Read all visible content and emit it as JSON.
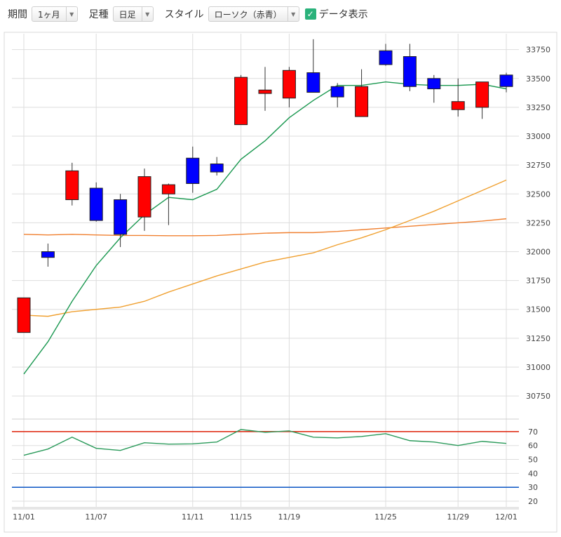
{
  "toolbar": {
    "period_label": "期間",
    "period_value": "1ヶ月",
    "candle_label": "足種",
    "candle_value": "日足",
    "style_label": "スタイル",
    "style_value": "ローソク（赤青）",
    "data_display_label": "データ表示",
    "data_display_checked": true
  },
  "colors": {
    "up": "#ff0000",
    "down": "#0000ff",
    "ma_short": "#1a9850",
    "ma_mid": "#f0a030",
    "ma_long": "#f08030",
    "rsi_line": "#2a9a5a",
    "rsi_upper": "#e0301a",
    "rsi_lower": "#1a60c8",
    "grid": "#dddddd"
  },
  "chart_data": [
    {
      "type": "candlestick",
      "x_ticks": [
        "11/01",
        "11/07",
        "11/11",
        "11/15",
        "11/19",
        "11/25",
        "11/29",
        "12/01"
      ],
      "x_tick_index": [
        0,
        3,
        7,
        9,
        11,
        15,
        18,
        20
      ],
      "y_ticks": [
        30750,
        31000,
        31250,
        31500,
        31750,
        32000,
        32250,
        32500,
        32750,
        33000,
        33250,
        33500,
        33750
      ],
      "ylim": [
        30550,
        33900
      ],
      "grid": true,
      "candles": [
        {
          "o": 31300,
          "h": 31600,
          "l": 31300,
          "c": 31600
        },
        {
          "o": 32000,
          "h": 32070,
          "l": 31870,
          "c": 31950
        },
        {
          "o": 32450,
          "h": 32770,
          "l": 32400,
          "c": 32700
        },
        {
          "o": 32550,
          "h": 32600,
          "l": 32260,
          "c": 32270
        },
        {
          "o": 32450,
          "h": 32500,
          "l": 32040,
          "c": 32150
        },
        {
          "o": 32300,
          "h": 32720,
          "l": 32180,
          "c": 32650
        },
        {
          "o": 32500,
          "h": 32590,
          "l": 32230,
          "c": 32580
        },
        {
          "o": 32810,
          "h": 32910,
          "l": 32510,
          "c": 32590
        },
        {
          "o": 32760,
          "h": 32820,
          "l": 32660,
          "c": 32690
        },
        {
          "o": 33100,
          "h": 33530,
          "l": 33100,
          "c": 33510
        },
        {
          "o": 33370,
          "h": 33600,
          "l": 33220,
          "c": 33400
        },
        {
          "o": 33330,
          "h": 33600,
          "l": 33250,
          "c": 33570
        },
        {
          "o": 33550,
          "h": 33840,
          "l": 33380,
          "c": 33380
        },
        {
          "o": 33430,
          "h": 33460,
          "l": 33250,
          "c": 33340
        },
        {
          "o": 33170,
          "h": 33580,
          "l": 33170,
          "c": 33430
        },
        {
          "o": 33740,
          "h": 33800,
          "l": 33610,
          "c": 33620
        },
        {
          "o": 33690,
          "h": 33800,
          "l": 33390,
          "c": 33430
        },
        {
          "o": 33500,
          "h": 33530,
          "l": 33290,
          "c": 33410
        },
        {
          "o": 33230,
          "h": 33500,
          "l": 33170,
          "c": 33300
        },
        {
          "o": 33250,
          "h": 33470,
          "l": 33150,
          "c": 33470
        },
        {
          "o": 33530,
          "h": 33550,
          "l": 33380,
          "c": 33430
        }
      ],
      "ma_short": [
        30940,
        31220,
        31570,
        31880,
        32120,
        32320,
        32470,
        32450,
        32540,
        32800,
        32960,
        33160,
        33310,
        33440,
        33440,
        33470,
        33450,
        33440,
        33440,
        33450,
        33410
      ],
      "ma_mid": [
        31450,
        31440,
        31480,
        31500,
        31520,
        31570,
        31650,
        31720,
        31790,
        31850,
        31910,
        31950,
        31990,
        32060,
        32120,
        32190,
        32270,
        32350,
        32440,
        32530,
        32620
      ],
      "ma_long": [
        32150,
        32145,
        32150,
        32145,
        32140,
        32140,
        32138,
        32138,
        32140,
        32150,
        32160,
        32165,
        32165,
        32175,
        32190,
        32205,
        32220,
        32235,
        32250,
        32265,
        32285
      ]
    },
    {
      "type": "line",
      "y_ticks": [
        20,
        30,
        40,
        50,
        60,
        70
      ],
      "ylim": [
        17,
        79
      ],
      "grid": true,
      "upper_line": 70,
      "lower_line": 30,
      "values": [
        53,
        57.5,
        66,
        58,
        56.5,
        62,
        61,
        61.2,
        62.5,
        71.5,
        69.5,
        70.5,
        66,
        65.5,
        66.5,
        68.5,
        63.5,
        62.5,
        60,
        63,
        61.5
      ]
    }
  ]
}
